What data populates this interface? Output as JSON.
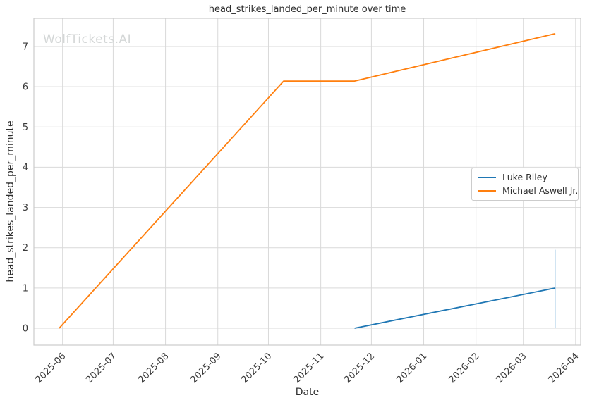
{
  "watermark": "WolfTickets.AI",
  "chart_data": {
    "type": "line",
    "title": "head_strikes_landed_per_minute over time",
    "xlabel": "Date",
    "ylabel": "head_strikes_landed_per_minute",
    "grid": true,
    "legend_position": "center right",
    "xlim": [
      "2025-05-15",
      "2026-04-04"
    ],
    "ylim": [
      -0.42,
      7.7
    ],
    "x_ticks": [
      {
        "date": "2025-06-01",
        "label": "2025-06"
      },
      {
        "date": "2025-07-01",
        "label": "2025-07"
      },
      {
        "date": "2025-08-01",
        "label": "2025-08"
      },
      {
        "date": "2025-09-01",
        "label": "2025-09"
      },
      {
        "date": "2025-10-01",
        "label": "2025-10"
      },
      {
        "date": "2025-11-01",
        "label": "2025-11"
      },
      {
        "date": "2025-12-01",
        "label": "2025-12"
      },
      {
        "date": "2026-01-01",
        "label": "2026-01"
      },
      {
        "date": "2026-02-01",
        "label": "2026-02"
      },
      {
        "date": "2026-03-01",
        "label": "2026-03"
      },
      {
        "date": "2026-04-01",
        "label": "2026-04"
      }
    ],
    "y_ticks": [
      0,
      1,
      2,
      3,
      4,
      5,
      6,
      7
    ],
    "series": [
      {
        "name": "Luke Riley",
        "color": "#1f77b4",
        "points": [
          [
            "2025-11-21",
            0.0
          ],
          [
            "2026-03-20",
            1.0
          ]
        ]
      },
      {
        "name": "Michael Aswell Jr.",
        "color": "#ff7f0e",
        "points": [
          [
            "2025-05-30",
            0.0
          ],
          [
            "2025-10-10",
            6.14
          ],
          [
            "2025-11-21",
            6.14
          ],
          [
            "2026-03-20",
            7.32
          ]
        ]
      }
    ],
    "error_bar": {
      "series": "Luke Riley",
      "date": "2026-03-20",
      "y_min": 0.0,
      "y_max": 1.95,
      "color": "#b5d3ea"
    },
    "style": {
      "grid_color": "#d9d9d9",
      "border_color": "#cbcbcb",
      "tick_label_color": "#3a3a3a",
      "background": "#ffffff"
    }
  }
}
